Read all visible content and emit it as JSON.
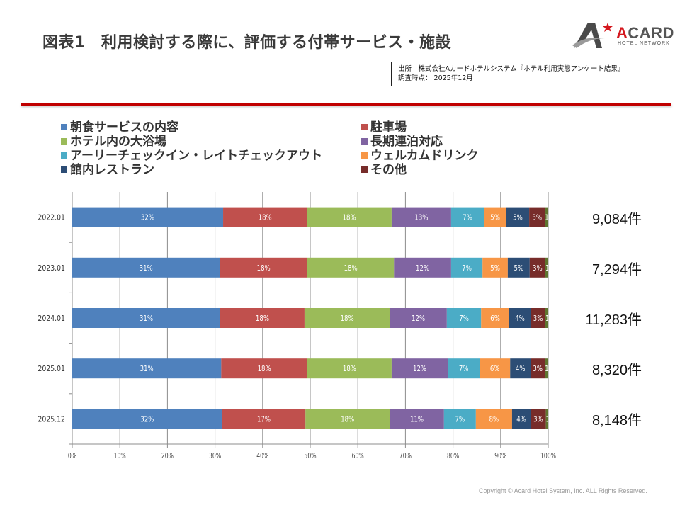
{
  "page": {
    "title_number": "図表1",
    "title_text": "利用検討する際に、評価する付帯サービス・施設",
    "logo": {
      "brand": "ACARD",
      "brand_first_letter": "A",
      "brand_rest": "CARD",
      "subtitle": "HOTEL NETWORK",
      "icon": "a-star-logo-icon"
    },
    "source_line1": "出所　株式会社Aカードホテルシステム『ホテル利用実態アンケート結果』",
    "source_line2": "調査時点：  2025年12月",
    "copyright": "Copyright © Acard Hotel System, Inc.  ALL Rights Reserved."
  },
  "colors": {
    "accent_red_line": "#c00000",
    "series": [
      "#4f81bd",
      "#c0504d",
      "#9bbb59",
      "#8064a2",
      "#4bacc6",
      "#f79646",
      "#2c4d75",
      "#772c2a",
      "#5f7530"
    ]
  },
  "chart_data": {
    "type": "bar",
    "orientation": "horizontal",
    "stacked": "percent",
    "title": "",
    "xlabel": "",
    "ylabel": "",
    "xlim": [
      0,
      100
    ],
    "x_ticks": [
      "0%",
      "10%",
      "20%",
      "30%",
      "40%",
      "50%",
      "60%",
      "70%",
      "80%",
      "90%",
      "100%"
    ],
    "grid": true,
    "legend_position": "top",
    "categories": [
      "2022.01",
      "2023.01",
      "2024.01",
      "2025.01",
      "2025.12"
    ],
    "counts": [
      "9,084件",
      "7,294件",
      "11,283件",
      "8,320件",
      "8,148件"
    ],
    "series": [
      {
        "name": "朝食サービスの内容",
        "values": [
          31.7,
          31.0,
          31.1,
          31.3,
          31.5
        ],
        "labels": [
          "32%",
          "31%",
          "31%",
          "31%",
          "32%"
        ]
      },
      {
        "name": "駐車場",
        "values": [
          17.6,
          18.4,
          17.7,
          18.1,
          17.5
        ],
        "labels": [
          "18%",
          "18%",
          "18%",
          "18%",
          "17%"
        ]
      },
      {
        "name": "ホテル内の大浴場",
        "values": [
          17.8,
          18.2,
          17.9,
          17.7,
          17.7
        ],
        "labels": [
          "18%",
          "18%",
          "18%",
          "18%",
          "18%"
        ]
      },
      {
        "name": "長期連泊対応",
        "values": [
          12.5,
          12.0,
          12.0,
          11.8,
          11.4
        ],
        "labels": [
          "13%",
          "12%",
          "12%",
          "12%",
          "11%"
        ]
      },
      {
        "name": "アーリーチェックイン・レイトチェックアウト",
        "values": [
          6.9,
          6.6,
          7.2,
          6.7,
          6.7
        ],
        "labels": [
          "7%",
          "7%",
          "7%",
          "7%",
          "7%"
        ]
      },
      {
        "name": "ウェルカムドリンク",
        "values": [
          4.7,
          5.3,
          5.9,
          6.4,
          7.6
        ],
        "labels": [
          "5%",
          "5%",
          "6%",
          "6%",
          "8%"
        ]
      },
      {
        "name": "館内レストラン",
        "values": [
          4.8,
          4.6,
          4.5,
          4.3,
          3.9
        ],
        "labels": [
          "5%",
          "5%",
          "4%",
          "4%",
          "4%"
        ]
      },
      {
        "name": "その他",
        "values": [
          3.3,
          3.3,
          3.1,
          3.0,
          3.2
        ],
        "labels": [
          "3%",
          "3%",
          "3%",
          "3%",
          "3%"
        ]
      },
      {
        "name": "",
        "values": [
          0.7,
          0.6,
          0.6,
          0.7,
          0.5
        ],
        "labels": [
          "1%",
          "1%",
          "1%",
          "1%",
          "1%"
        ]
      }
    ]
  },
  "legend": [
    {
      "label": "朝食サービスの内容"
    },
    {
      "label": "駐車場"
    },
    {
      "label": "ホテル内の大浴場"
    },
    {
      "label": "長期連泊対応"
    },
    {
      "label": "アーリーチェックイン・レイトチェックアウト"
    },
    {
      "label": "ウェルカムドリンク"
    },
    {
      "label": "館内レストラン"
    },
    {
      "label": "その他"
    }
  ]
}
